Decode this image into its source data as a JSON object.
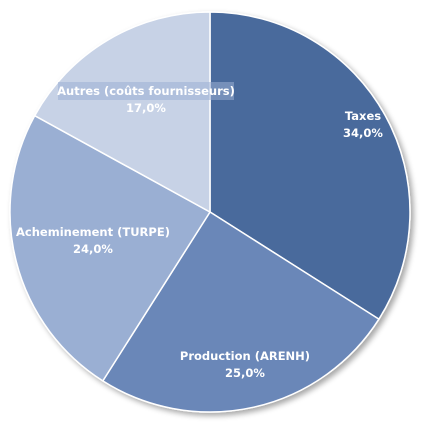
{
  "chart_data": {
    "type": "pie",
    "title": "",
    "categories": [
      "Taxes",
      "Production (ARENH)",
      "Acheminement (TURPE)",
      "Autres (coûts fournisseurs)"
    ],
    "values": [
      34.0,
      25.0,
      24.0,
      17.0
    ],
    "value_labels": [
      "34,0%",
      "25,0%",
      "24,0%",
      "17,0%"
    ],
    "colors": [
      "#4a6a9c",
      "#6b87b8",
      "#9aafd3",
      "#c7d2e6"
    ],
    "start": "12 o'clock",
    "direction": "clockwise",
    "legend": "none"
  }
}
